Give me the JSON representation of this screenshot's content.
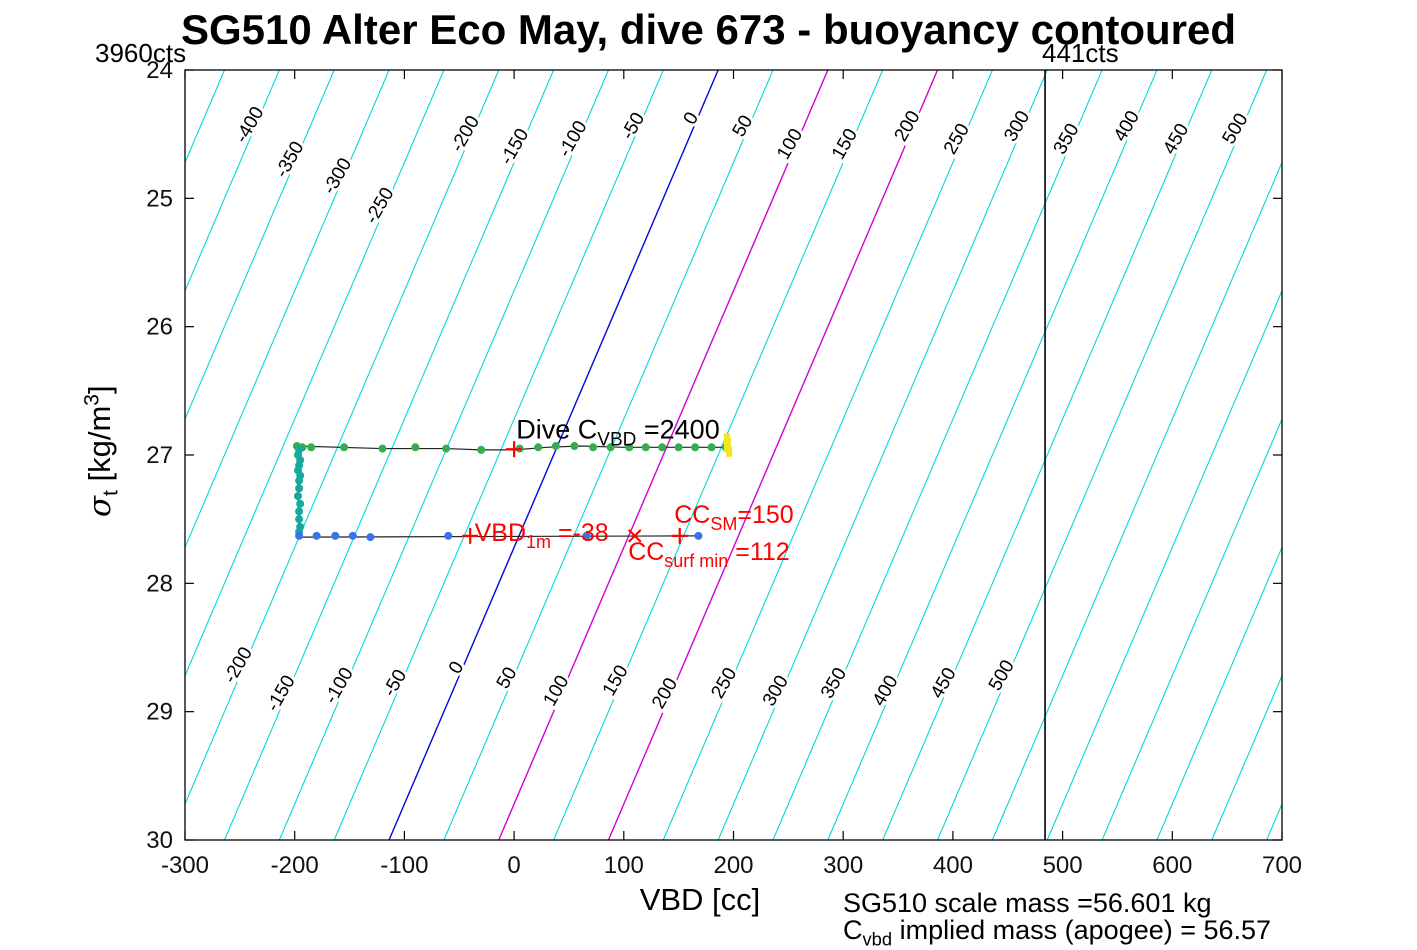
{
  "title": "SG510 Alter Eco May, dive 673 - buoyancy contoured",
  "counts_left": "3960cts",
  "counts_right": "441cts",
  "axis_labels": {
    "x": "VBD [cc]",
    "y_sigma": "σ",
    "y_sub": "t",
    "y_mid": " [kg/m",
    "y_sup": "3",
    "y_end": "]"
  },
  "footer": {
    "line1": "SG510 scale mass =56.601 kg",
    "line2_main": "C",
    "line2_sub": "vbd",
    "line2_rest": " implied mass (apogee) = 56.57"
  },
  "chart_data": {
    "type": "contour+scatter",
    "title": "SG510 Alter Eco May, dive 673 - buoyancy contoured",
    "xlabel": "VBD [cc]",
    "ylabel": "sigma_t [kg/m^3]",
    "xlim": [
      -300,
      700
    ],
    "ylim": [
      24,
      30
    ],
    "y_inverted": true,
    "xticks": [
      -300,
      -200,
      -100,
      0,
      100,
      200,
      300,
      400,
      500,
      600,
      700
    ],
    "yticks": [
      24,
      25,
      26,
      27,
      28,
      29,
      30
    ],
    "colors": {
      "contour_cyan": "#00d9d9",
      "contour_zero_blue": "#0008e0",
      "contour_highlight_magenta": "#d400d4",
      "trace_black": "#222222",
      "descent_green": "#35ad4e",
      "apogee_teal": "#17a89e",
      "climb_blue": "#3b72e8",
      "surface_yellow": "#f2e426",
      "marker_red": "#ff0000",
      "vertical_line_black": "#000000"
    },
    "contours": {
      "comment": "buoyancy [g] contours, straight lines: VBD_at_contour = v0_at_top + slope_per_sigma*(sigma-24) + value",
      "value_min": -500,
      "value_max": 800,
      "step": 50,
      "v0_at_top": 186,
      "slope_per_sigma": -50,
      "zero_value": 0,
      "highlight_values": [
        100,
        200
      ],
      "label_rotation_deg": -60
    },
    "contour_labels": {
      "top": [
        {
          "v": -400,
          "s": 24.45
        },
        {
          "v": -350,
          "s": 24.72
        },
        {
          "v": -300,
          "s": 24.85
        },
        {
          "v": -250,
          "s": 25.08
        },
        {
          "v": -200,
          "s": 24.52
        },
        {
          "v": -150,
          "s": 24.62
        },
        {
          "v": -100,
          "s": 24.56
        },
        {
          "v": -50,
          "s": 24.46
        },
        {
          "v": 0,
          "s": 24.4
        },
        {
          "v": 50,
          "s": 24.46
        },
        {
          "v": 100,
          "s": 24.6
        },
        {
          "v": 150,
          "s": 24.6
        },
        {
          "v": 200,
          "s": 24.46
        },
        {
          "v": 250,
          "s": 24.56
        },
        {
          "v": 300,
          "s": 24.46
        },
        {
          "v": 350,
          "s": 24.56
        },
        {
          "v": 400,
          "s": 24.46
        },
        {
          "v": 450,
          "s": 24.56
        },
        {
          "v": 500,
          "s": 24.48
        }
      ],
      "bottom": [
        {
          "v": -200,
          "s": 28.66
        },
        {
          "v": -150,
          "s": 28.88
        },
        {
          "v": -100,
          "s": 28.82
        },
        {
          "v": -50,
          "s": 28.8
        },
        {
          "v": 0,
          "s": 28.68
        },
        {
          "v": 50,
          "s": 28.76
        },
        {
          "v": 100,
          "s": 28.86
        },
        {
          "v": 150,
          "s": 28.78
        },
        {
          "v": 200,
          "s": 28.88
        },
        {
          "v": 250,
          "s": 28.8
        },
        {
          "v": 300,
          "s": 28.86
        },
        {
          "v": 350,
          "s": 28.8
        },
        {
          "v": 400,
          "s": 28.86
        },
        {
          "v": 450,
          "s": 28.8
        },
        {
          "v": 500,
          "s": 28.74
        }
      ]
    },
    "vertical_line": {
      "x": 484,
      "label": "441cts"
    },
    "trace": {
      "points": [
        [
          197,
          26.94
        ],
        [
          160,
          26.94
        ],
        [
          100,
          26.94
        ],
        [
          60,
          26.93
        ],
        [
          30,
          26.94
        ],
        [
          0,
          26.96
        ],
        [
          -30,
          26.96
        ],
        [
          -62,
          26.95
        ],
        [
          -120,
          26.95
        ],
        [
          -198,
          26.93
        ],
        [
          -196,
          27.63
        ],
        [
          -196,
          27.64
        ],
        [
          168,
          27.63
        ]
      ]
    },
    "scatter": [
      {
        "name": "descent-points",
        "color": "#35ad4e",
        "r": 4,
        "points": [
          [
            -198,
            26.93
          ],
          [
            -193,
            26.94
          ],
          [
            -185,
            26.94
          ],
          [
            -155,
            26.94
          ],
          [
            -120,
            26.95
          ],
          [
            -90,
            26.94
          ],
          [
            -62,
            26.95
          ],
          [
            -30,
            26.96
          ],
          [
            5,
            26.95
          ],
          [
            22,
            26.94
          ],
          [
            38,
            26.93
          ],
          [
            55,
            26.93
          ],
          [
            72,
            26.94
          ],
          [
            88,
            26.94
          ],
          [
            105,
            26.94
          ],
          [
            120,
            26.94
          ],
          [
            135,
            26.94
          ],
          [
            150,
            26.94
          ],
          [
            165,
            26.94
          ],
          [
            180,
            26.94
          ],
          [
            193,
            26.94
          ]
        ]
      },
      {
        "name": "apogee-points",
        "color": "#17a89e",
        "r": 4,
        "points": [
          [
            -196,
            26.96
          ],
          [
            -197,
            27.0
          ],
          [
            -195,
            27.04
          ],
          [
            -196,
            27.08
          ],
          [
            -197,
            27.12
          ],
          [
            -195,
            27.16
          ],
          [
            -196,
            27.2
          ],
          [
            -196,
            27.26
          ],
          [
            -197,
            27.32
          ],
          [
            -195,
            27.38
          ],
          [
            -196,
            27.44
          ],
          [
            -196,
            27.5
          ],
          [
            -195,
            27.56
          ],
          [
            -196,
            27.6
          ]
        ]
      },
      {
        "name": "climb-points",
        "color": "#3b72e8",
        "r": 4,
        "points": [
          [
            -196,
            27.63
          ],
          [
            -180,
            27.63
          ],
          [
            -163,
            27.63
          ],
          [
            -147,
            27.63
          ],
          [
            -131,
            27.64
          ],
          [
            -60,
            27.63
          ],
          [
            66,
            27.63
          ],
          [
            168,
            27.63
          ]
        ]
      }
    ],
    "yellow_marks": [
      [
        194,
        26.87
      ],
      [
        195,
        26.905
      ],
      [
        194,
        26.94
      ],
      [
        196,
        26.975
      ]
    ],
    "red_markers": [
      {
        "x": 0,
        "y": 26.955,
        "type": "plus"
      },
      {
        "x": -40,
        "y": 27.63,
        "type": "plus"
      },
      {
        "x": 110,
        "y": 27.63,
        "type": "x"
      },
      {
        "x": 151,
        "y": 27.63,
        "type": "plus"
      }
    ],
    "annotations": [
      {
        "x": 2,
        "y": 26.87,
        "color": "#000000",
        "size": 27,
        "segments": [
          {
            "t": "Dive C"
          },
          {
            "t": "VBD",
            "sub": true
          },
          {
            "t": " =2400"
          }
        ]
      },
      {
        "x": -36,
        "y": 27.67,
        "color": "#ff0000",
        "size": 25,
        "segments": [
          {
            "t": "VBD"
          },
          {
            "t": "1m",
            "sub": true
          },
          {
            "t": " =-38"
          }
        ]
      },
      {
        "x": 146,
        "y": 27.53,
        "color": "#ff0000",
        "size": 25,
        "segments": [
          {
            "t": "CC"
          },
          {
            "t": "SM",
            "sub": true
          },
          {
            "t": "=150"
          }
        ]
      },
      {
        "x": 104,
        "y": 27.82,
        "color": "#ff0000",
        "size": 25,
        "segments": [
          {
            "t": "CC"
          },
          {
            "t": "surf min",
            "sub": true
          },
          {
            "t": " =112"
          }
        ]
      }
    ]
  }
}
